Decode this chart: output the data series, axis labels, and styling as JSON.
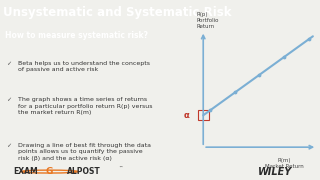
{
  "title": "Unsystematic and Systematic Risk",
  "title_bg": "#E87722",
  "title_color": "#FFFFFF",
  "title_fontsize": 8.5,
  "subtitle": "How to measure systematic risk?",
  "subtitle_bg": "#4A90A4",
  "subtitle_color": "#FFFFFF",
  "subtitle_fontsize": 5.5,
  "bullets": [
    "Beta helps us to understand the concepts\nof passive and active risk",
    "The graph shows a time series of returns\nfor a particular portfolio return R(p) versus\nthe market return R(m)",
    "Drawing a line of best fit through the data\npoints allows us to quantify the passive\nrisk (β) and the active risk (α)"
  ],
  "bullet_fontsize": 4.5,
  "bg_color": "#F0F0EC",
  "left_panel_bg": "#FFFFFF",
  "right_panel_bg": "#F0F0EC",
  "graph_line_color": "#7BAFD4",
  "alpha_label_color": "#C0392B",
  "alpha_box_color": "#C0392B",
  "axis_color": "#7BAFD4",
  "ylabel_text": "R(p)\nPortfolio\nReturn",
  "xlabel_text": "R(m)\nMarket Return",
  "alpha_text": "α",
  "alpha_fontsize": 6,
  "axis_label_fontsize": 4.0,
  "examgoalpost_text_dark": "#2C2C2C",
  "examgoalpost_orange": "#E87722",
  "examgoalpost_fontsize": 5.5,
  "wiley_color": "#2C2C2C",
  "wiley_fontsize": 6,
  "bottom_bar_bg": "#F0F0EC"
}
